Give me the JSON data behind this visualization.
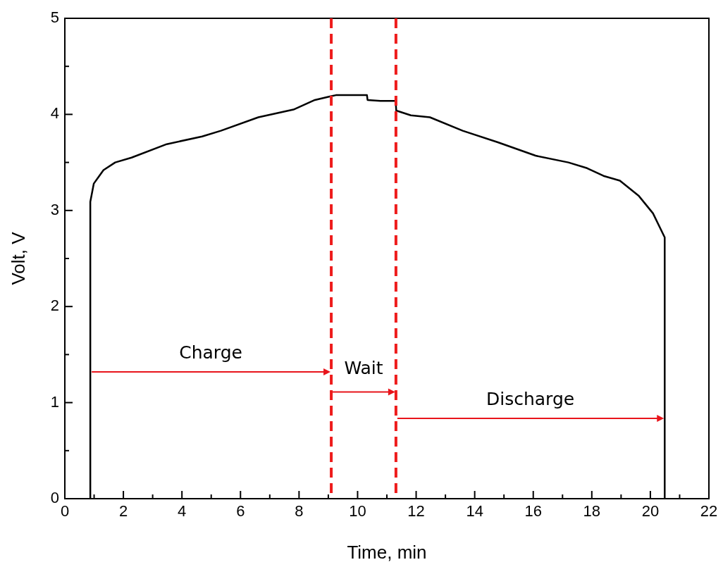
{
  "chart_data": {
    "type": "line",
    "xlabel": "Time, min",
    "ylabel": "Volt, V",
    "xlim": [
      0,
      22
    ],
    "ylim": [
      0,
      5
    ],
    "xticks": [
      0,
      {
        "value": 1,
        "label": null
      },
      2,
      {
        "value": 3,
        "label": null
      },
      4,
      {
        "value": 5,
        "label": null
      },
      6,
      {
        "value": 7,
        "label": null
      },
      8,
      {
        "value": 9,
        "label": null
      },
      10,
      {
        "value": 11,
        "label": null
      },
      12,
      {
        "value": 13,
        "label": null
      },
      14,
      {
        "value": 15,
        "label": null
      },
      16,
      {
        "value": 17,
        "label": null
      },
      18,
      {
        "value": 19,
        "label": null
      },
      20,
      {
        "value": 21,
        "label": null
      },
      22
    ],
    "yticks": [
      0,
      {
        "value": 0.5,
        "label": null
      },
      1,
      {
        "value": 1.5,
        "label": null
      },
      2,
      {
        "value": 2.5,
        "label": null
      },
      3,
      {
        "value": 3.5,
        "label": null
      },
      4,
      {
        "value": 4.5,
        "label": null
      },
      5
    ],
    "marker": "none",
    "line_style": "solid",
    "grid": false,
    "legend": false,
    "series": [
      {
        "color": "#000000",
        "x": [
          0.87,
          0.87,
          0.99,
          1.32,
          1.72,
          2.28,
          3.48,
          4.69,
          5.33,
          6.61,
          7.81,
          8.54,
          9.1,
          9.26,
          10.32,
          10.34,
          10.78,
          11.3,
          11.32,
          11.82,
          12.47,
          13.59,
          14.79,
          16.08,
          17.2,
          17.84,
          18.4,
          18.96,
          19.61,
          20.09,
          20.49,
          20.49
        ],
        "values": [
          0,
          3.09,
          3.28,
          3.42,
          3.5,
          3.55,
          3.69,
          3.77,
          3.83,
          3.97,
          4.05,
          4.15,
          4.19,
          4.2,
          4.2,
          4.15,
          4.14,
          4.14,
          4.04,
          3.99,
          3.97,
          3.83,
          3.71,
          3.57,
          3.5,
          3.44,
          3.36,
          3.31,
          3.15,
          2.97,
          2.72,
          0
        ]
      }
    ],
    "ref_lines": [
      {
        "axis": "x",
        "value": 9.1,
        "color": "#ee1c1c",
        "line_style": "dashed"
      },
      {
        "axis": "x",
        "value": 11.31,
        "color": "#ee1c1c",
        "line_style": "dashed"
      }
    ],
    "annotations": [
      "Charge",
      {
        "text": "Wait",
        "x": 11.31,
        "y": 1.11
      },
      "Discharge"
    ]
  }
}
